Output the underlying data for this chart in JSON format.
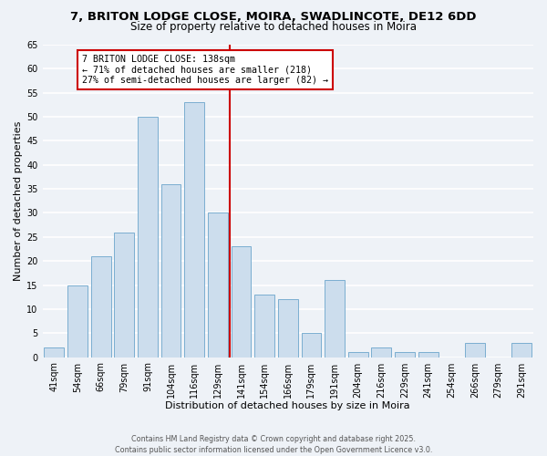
{
  "title": "7, BRITON LODGE CLOSE, MOIRA, SWADLINCOTE, DE12 6DD",
  "subtitle": "Size of property relative to detached houses in Moira",
  "xlabel": "Distribution of detached houses by size in Moira",
  "ylabel": "Number of detached properties",
  "categories": [
    "41sqm",
    "54sqm",
    "66sqm",
    "79sqm",
    "91sqm",
    "104sqm",
    "116sqm",
    "129sqm",
    "141sqm",
    "154sqm",
    "166sqm",
    "179sqm",
    "191sqm",
    "204sqm",
    "216sqm",
    "229sqm",
    "241sqm",
    "254sqm",
    "266sqm",
    "279sqm",
    "291sqm"
  ],
  "values": [
    2,
    15,
    21,
    26,
    50,
    36,
    53,
    30,
    23,
    13,
    12,
    5,
    16,
    1,
    2,
    1,
    1,
    0,
    3,
    0,
    3
  ],
  "bar_color": "#ccdded",
  "bar_edge_color": "#7aaed0",
  "vline_color": "#cc0000",
  "annotation_line1": "7 BRITON LODGE CLOSE: 138sqm",
  "annotation_line2": "← 71% of detached houses are smaller (218)",
  "annotation_line3": "27% of semi-detached houses are larger (82) →",
  "annotation_box_color": "#cc0000",
  "ylim": [
    0,
    65
  ],
  "yticks": [
    0,
    5,
    10,
    15,
    20,
    25,
    30,
    35,
    40,
    45,
    50,
    55,
    60,
    65
  ],
  "footer_line1": "Contains HM Land Registry data © Crown copyright and database right 2025.",
  "footer_line2": "Contains public sector information licensed under the Open Government Licence v3.0.",
  "bg_color": "#eef2f7",
  "grid_color": "#ffffff",
  "title_fontsize": 9.5,
  "subtitle_fontsize": 8.5,
  "axis_label_fontsize": 8,
  "tick_fontsize": 7
}
